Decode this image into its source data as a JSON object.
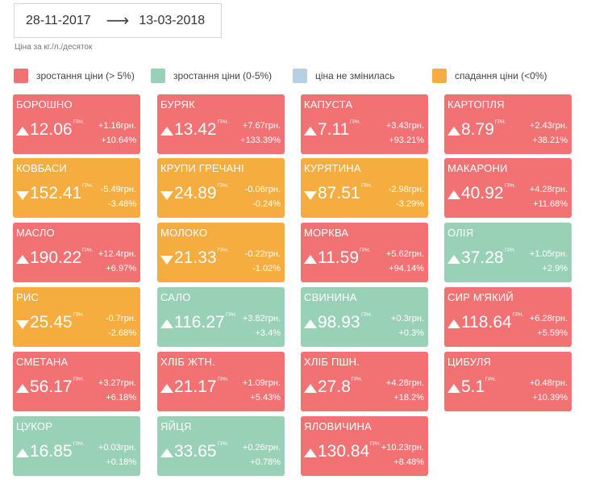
{
  "period": {
    "from": "28-11-2017",
    "arrow": "⟶",
    "to": "13-03-2018"
  },
  "unit_note": "Ціна за кг./л./десяток",
  "legend": [
    {
      "label": "зростання ціни (> 5%)",
      "color": "#f27173"
    },
    {
      "label": "зростання ціни (0-5%)",
      "color": "#99d1b6"
    },
    {
      "label": "ціна не змінилась",
      "color": "#b7cfe4"
    },
    {
      "label": "спадання ціни (<0%)",
      "color": "#f5ad3f"
    }
  ],
  "currency": "ГРН.",
  "products": [
    {
      "name": "БОРОШНО",
      "price": "12.06",
      "trend": "up",
      "category": "red",
      "delta_abs": "+1.16грн.",
      "delta_pct": "+10.64%"
    },
    {
      "name": "БУРЯК",
      "price": "13.42",
      "trend": "up",
      "category": "red",
      "delta_abs": "+7.67грн.",
      "delta_pct": "+133.39%"
    },
    {
      "name": "КАПУСТА",
      "price": "7.11",
      "trend": "up",
      "category": "red",
      "delta_abs": "+3.43грн.",
      "delta_pct": "+93.21%"
    },
    {
      "name": "КАРТОПЛЯ",
      "price": "8.79",
      "trend": "up",
      "category": "red",
      "delta_abs": "+2.43грн.",
      "delta_pct": "+38.21%"
    },
    {
      "name": "КОВБАСИ",
      "price": "152.41",
      "trend": "down",
      "category": "orange",
      "delta_abs": "-5.49грн.",
      "delta_pct": "-3.48%"
    },
    {
      "name": "КРУПИ ГРЕЧАНІ",
      "price": "24.89",
      "trend": "down",
      "category": "orange",
      "delta_abs": "-0.06грн.",
      "delta_pct": "-0.24%"
    },
    {
      "name": "КУРЯТИНА",
      "price": "87.51",
      "trend": "down",
      "category": "orange",
      "delta_abs": "-2.98грн.",
      "delta_pct": "-3.29%"
    },
    {
      "name": "МАКАРОНИ",
      "price": "40.92",
      "trend": "up",
      "category": "red",
      "delta_abs": "+4.28грн.",
      "delta_pct": "+11.68%"
    },
    {
      "name": "МАСЛО",
      "price": "190.22",
      "trend": "up",
      "category": "red",
      "delta_abs": "+12.4грн.",
      "delta_pct": "+6.97%"
    },
    {
      "name": "МОЛОКО",
      "price": "21.33",
      "trend": "down",
      "category": "orange",
      "delta_abs": "-0.22грн.",
      "delta_pct": "-1.02%"
    },
    {
      "name": "МОРКВА",
      "price": "11.59",
      "trend": "up",
      "category": "red",
      "delta_abs": "+5.62грн.",
      "delta_pct": "+94.14%"
    },
    {
      "name": "ОЛІЯ",
      "price": "37.28",
      "trend": "up",
      "category": "green",
      "delta_abs": "+1.05грн.",
      "delta_pct": "+2.9%"
    },
    {
      "name": "РИС",
      "price": "25.45",
      "trend": "down",
      "category": "orange",
      "delta_abs": "-0.7грн.",
      "delta_pct": "-2.68%"
    },
    {
      "name": "САЛО",
      "price": "116.27",
      "trend": "up",
      "category": "green",
      "delta_abs": "+3.82грн.",
      "delta_pct": "+3.4%"
    },
    {
      "name": "СВИНИНА",
      "price": "98.93",
      "trend": "up",
      "category": "green",
      "delta_abs": "+0.3грн.",
      "delta_pct": "+0.3%"
    },
    {
      "name": "СИР М'ЯКИЙ",
      "price": "118.64",
      "trend": "up",
      "category": "red",
      "delta_abs": "+6.28грн.",
      "delta_pct": "+5.59%"
    },
    {
      "name": "СМЕТАНА",
      "price": "56.17",
      "trend": "up",
      "category": "red",
      "delta_abs": "+3.27грн.",
      "delta_pct": "+6.18%"
    },
    {
      "name": "ХЛІБ ЖТН.",
      "price": "21.17",
      "trend": "up",
      "category": "red",
      "delta_abs": "+1.09грн.",
      "delta_pct": "+5.43%"
    },
    {
      "name": "ХЛІБ ПШН.",
      "price": "27.8",
      "trend": "up",
      "category": "red",
      "delta_abs": "+4.28грн.",
      "delta_pct": "+18.2%"
    },
    {
      "name": "ЦИБУЛЯ",
      "price": "5.1",
      "trend": "up",
      "category": "red",
      "delta_abs": "+0.48грн.",
      "delta_pct": "+10.39%"
    },
    {
      "name": "ЦУКОР",
      "price": "16.85",
      "trend": "up",
      "category": "green",
      "delta_abs": "+0.03грн.",
      "delta_pct": "+0.18%"
    },
    {
      "name": "ЯЙЦЯ",
      "price": "33.65",
      "trend": "up",
      "category": "green",
      "delta_abs": "+0.26грн.",
      "delta_pct": "+0.78%"
    },
    {
      "name": "ЯЛОВИЧИНА",
      "price": "130.84",
      "trend": "up",
      "category": "red",
      "delta_abs": "+10.23грн.",
      "delta_pct": "+8.48%"
    }
  ]
}
